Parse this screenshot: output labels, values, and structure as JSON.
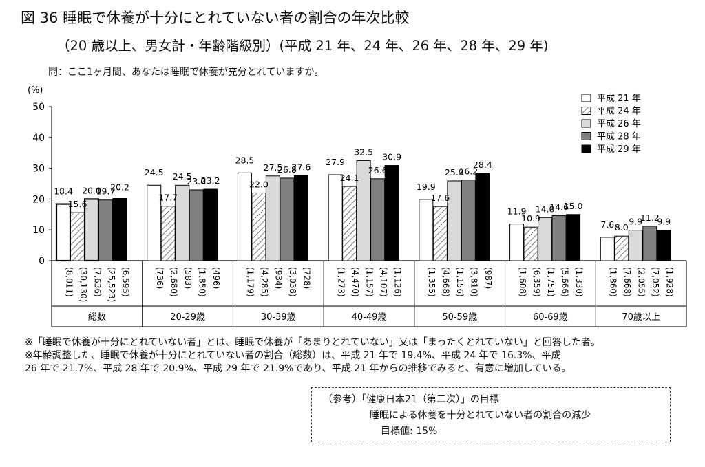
{
  "header": {
    "title": "図 36  睡眠で休養が十分にとれていない者の割合の年次比較",
    "subtitle": "（20 歳以上、男女計・年齢階級別）(平成 21 年、24 年、26 年、28 年、29 年)",
    "question": "問：ここ1ヶ月間、あなたは睡眠で休養が充分とれていますか。"
  },
  "chart_data": {
    "type": "bar",
    "ylabel": "(%)",
    "ylim": [
      0,
      50
    ],
    "yticks": [
      "0",
      "10",
      "20",
      "30",
      "40",
      "50"
    ],
    "categories": [
      "総数",
      "20-29歳",
      "30-39歳",
      "40-49歳",
      "50-59歳",
      "60-69歳",
      "70歳以上"
    ],
    "series": [
      {
        "name": "平成 21 年",
        "style": "white",
        "values": [
          18.4,
          24.5,
          28.5,
          27.9,
          19.9,
          11.9,
          7.6
        ],
        "labels": [
          "18.4",
          "24.5",
          "28.5",
          "27.9",
          "19.9",
          "11.9",
          "7.6"
        ],
        "n": [
          "(8,011)",
          "(736)",
          "(1,179)",
          "(1,273)",
          "(1,355)",
          "(1,608)",
          "(1,860)"
        ]
      },
      {
        "name": "平成 24 年",
        "style": "hatch",
        "values": [
          15.6,
          17.7,
          22.0,
          24.1,
          17.6,
          10.9,
          8.0
        ],
        "labels": [
          "15.6",
          "17.7",
          "22.0",
          "24.1",
          "17.6",
          "10.9",
          "8.0"
        ],
        "n": [
          "(30,130)",
          "(2,680)",
          "(4,285)",
          "(4,470)",
          "(4,668)",
          "(6,359)",
          "(7,668)"
        ]
      },
      {
        "name": "平成 26 年",
        "style": "light",
        "values": [
          20.0,
          24.5,
          27.5,
          32.5,
          25.9,
          14.0,
          9.9
        ],
        "labels": [
          "20.0",
          "24.5",
          "27.5",
          "32.5",
          "25.9",
          "14.0",
          "9.9"
        ],
        "n": [
          "(7,636)",
          "(583)",
          "(934)",
          "(1,157)",
          "(1,156)",
          "(1,751)",
          "(2,055)"
        ]
      },
      {
        "name": "平成 28 年",
        "style": "mid",
        "values": [
          19.7,
          23.0,
          26.8,
          26.6,
          26.2,
          14.6,
          11.2
        ],
        "labels": [
          "19.7",
          "23.0",
          "26.8",
          "26.6",
          "26.2",
          "14.6",
          "11.2"
        ],
        "n": [
          "(25,523)",
          "(1,850)",
          "(3,038)",
          "(4,107)",
          "(3,810)",
          "(5,666)",
          "(7,052)"
        ]
      },
      {
        "name": "平成 29 年",
        "style": "black",
        "values": [
          20.2,
          23.2,
          27.6,
          30.9,
          28.4,
          15.0,
          9.9
        ],
        "labels": [
          "20.2",
          "23.2",
          "27.6",
          "30.9",
          "28.4",
          "15.0",
          "9.9"
        ],
        "n": [
          "(6,595)",
          "(496)",
          "(728)",
          "(1,126)",
          "(987)",
          "(1,330)",
          "(1,928)"
        ]
      }
    ],
    "legend_position": "top-right",
    "styles": {
      "white": "#ffffff",
      "light": "#d9d9d9",
      "mid": "#808080",
      "black": "#000000",
      "stroke": "#000000"
    }
  },
  "notes": [
    "※「睡眠で休養が十分にとれていない者」とは、睡眠で休養が「あまりとれていない」又は「まったくとれていない」と回答した者。",
    "※年齢調整した、睡眠で休養が十分にとれていない者の割合（総数）は、平成 21 年で 19.4%、平成 24 年で 16.3%、平成",
    "26 年で 21.7%、平成 28 年で 20.9%、平成 29 年で 21.9%であり、平成 21 年からの推移でみると、有意に増加している。"
  ],
  "reference": {
    "line1": "（参考）「健康日本21（第二次）」の目標",
    "line2": "睡眠による休養を十分とれていない者の割合の減少",
    "line3": "目標値:  15%"
  }
}
